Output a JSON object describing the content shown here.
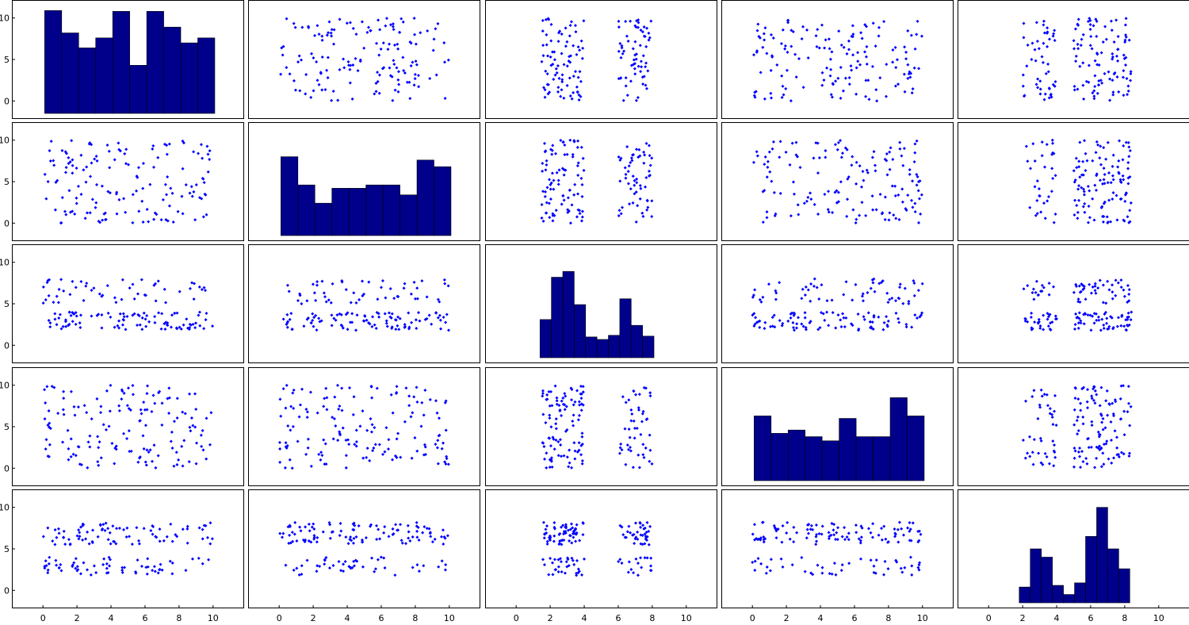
{
  "colors": {
    "point": "#0000ff",
    "bar": "#00008b",
    "frame": "#000000",
    "background": "#ffffff"
  },
  "chart_data": {
    "type": "scatter-matrix",
    "title": "",
    "variables": 5,
    "grid": false,
    "legend": "none",
    "axis_range": [
      -1.5,
      11.5
    ],
    "ticks": [
      0,
      2,
      4,
      6,
      8,
      10
    ],
    "y_ticks": [
      0,
      5,
      10
    ],
    "tick_labels": [
      "0",
      "2",
      "4",
      "6",
      "8",
      "10"
    ],
    "y_tick_labels": [
      "0",
      "5",
      "10"
    ],
    "diagonal": "histogram",
    "off_diagonal": "scatter",
    "distributions": [
      {
        "kind": "uniform",
        "lo": 0,
        "hi": 10
      },
      {
        "kind": "uniform",
        "lo": 0,
        "hi": 10
      },
      {
        "kind": "clusters",
        "clusters": [
          [
            1.5,
            4.0,
            0.62
          ],
          [
            6.0,
            8.0,
            0.38
          ]
        ]
      },
      {
        "kind": "uniform",
        "lo": 0,
        "hi": 10
      },
      {
        "kind": "clusters",
        "clusters": [
          [
            2.0,
            4.0,
            0.3
          ],
          [
            5.0,
            8.4,
            0.7
          ]
        ]
      }
    ],
    "scatter_y_ranges": [
      {
        "kind": "uniform",
        "lo": 0,
        "hi": 10
      },
      {
        "kind": "uniform",
        "lo": 0,
        "hi": 10
      },
      {
        "kind": "clusters",
        "clusters": [
          [
            1.8,
            4.0,
            0.6
          ],
          [
            5.0,
            8.0,
            0.4
          ]
        ]
      },
      {
        "kind": "uniform",
        "lo": 0,
        "hi": 10
      },
      {
        "kind": "clusters",
        "clusters": [
          [
            1.8,
            4.0,
            0.35
          ],
          [
            5.5,
            8.2,
            0.65
          ]
        ]
      }
    ],
    "histograms": [
      {
        "edges": [
          0.1,
          1.1,
          2.1,
          3.1,
          4.1,
          5.1,
          6.1,
          7.1,
          8.1,
          9.1,
          10.1
        ],
        "heights": [
          10.9,
          8.2,
          6.4,
          7.6,
          10.8,
          4.3,
          10.8,
          8.9,
          7.0,
          7.6
        ]
      },
      {
        "edges": [
          0.1,
          1.1,
          2.1,
          3.1,
          4.1,
          5.1,
          6.1,
          7.1,
          8.1,
          9.1,
          10.1
        ],
        "heights": [
          8.0,
          4.6,
          2.4,
          4.2,
          4.2,
          4.6,
          4.6,
          3.4,
          7.6,
          6.8
        ]
      },
      {
        "edges": [
          1.4,
          2.07,
          2.74,
          3.41,
          4.08,
          4.75,
          5.42,
          6.09,
          6.76,
          7.43,
          8.1
        ],
        "heights": [
          3.1,
          8.2,
          8.9,
          4.9,
          1.0,
          0.7,
          1.2,
          5.6,
          2.4,
          1.1
        ]
      },
      {
        "edges": [
          0.1,
          1.1,
          2.1,
          3.1,
          4.1,
          5.1,
          6.1,
          7.1,
          8.1,
          9.1,
          10.1
        ],
        "heights": [
          6.3,
          4.2,
          4.6,
          3.8,
          3.3,
          6.0,
          3.8,
          3.8,
          8.5,
          6.3
        ]
      },
      {
        "edges": [
          1.8,
          2.45,
          3.1,
          3.75,
          4.4,
          5.05,
          5.7,
          6.35,
          7.0,
          7.65,
          8.3
        ],
        "heights": [
          0.4,
          5.0,
          4.0,
          0.6,
          -0.5,
          0.9,
          6.5,
          10.0,
          5.0,
          2.6
        ]
      }
    ]
  }
}
